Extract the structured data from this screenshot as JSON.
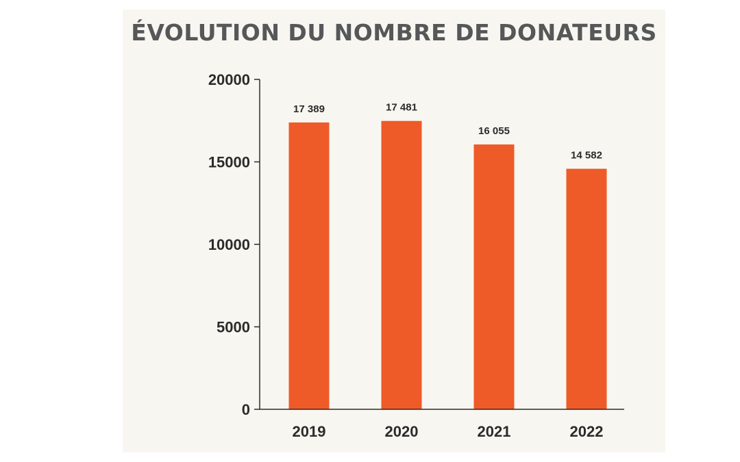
{
  "chart_data": {
    "type": "bar",
    "title": "ÉVOLUTION DU NOMBRE DE DONATEURS",
    "categories": [
      "2019",
      "2020",
      "2021",
      "2022"
    ],
    "values": [
      17389,
      17481,
      16055,
      14582
    ],
    "value_labels": [
      "17 389",
      "17 481",
      "16 055",
      "14 582"
    ],
    "yticks": [
      "0",
      "5000",
      "10000",
      "15000",
      "20000"
    ],
    "ylim": [
      0,
      20000
    ],
    "grid": false,
    "legend": "none",
    "bar_color": "#ee5a28",
    "background_color": "#f8f6f0"
  }
}
